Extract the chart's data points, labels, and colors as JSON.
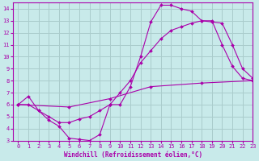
{
  "title": "",
  "xlabel": "Windchill (Refroidissement éolien,°C)",
  "ylabel": "",
  "bg_color": "#c8eaea",
  "line_color": "#aa00aa",
  "grid_color": "#aacccc",
  "xlim": [
    -0.5,
    23
  ],
  "ylim": [
    3,
    14.5
  ],
  "xticks": [
    0,
    1,
    2,
    3,
    4,
    5,
    6,
    7,
    8,
    9,
    10,
    11,
    12,
    13,
    14,
    15,
    16,
    17,
    18,
    19,
    20,
    21,
    22,
    23
  ],
  "yticks": [
    3,
    4,
    5,
    6,
    7,
    8,
    9,
    10,
    11,
    12,
    13,
    14
  ],
  "curve1_x": [
    0,
    1,
    2,
    3,
    4,
    5,
    6,
    7,
    8,
    9,
    10,
    11,
    12,
    13,
    14,
    15,
    16,
    17,
    18,
    19,
    20,
    21,
    22,
    23
  ],
  "curve1_y": [
    6.0,
    6.7,
    5.5,
    4.7,
    4.2,
    3.2,
    3.1,
    3.0,
    3.5,
    6.0,
    6.0,
    7.5,
    10.0,
    12.9,
    14.3,
    14.3,
    14.0,
    13.8,
    13.0,
    13.0,
    11.0,
    9.2,
    8.2,
    8.0
  ],
  "curve2_x": [
    0,
    1,
    2,
    3,
    4,
    5,
    6,
    7,
    8,
    9,
    10,
    11,
    12,
    13,
    14,
    15,
    16,
    17,
    18,
    19,
    20,
    21,
    22,
    23
  ],
  "curve2_y": [
    6.0,
    6.0,
    5.5,
    5.0,
    4.5,
    4.5,
    4.8,
    5.0,
    5.5,
    6.0,
    7.0,
    8.0,
    9.5,
    10.5,
    11.5,
    12.2,
    12.5,
    12.8,
    13.0,
    12.9,
    12.8,
    11.0,
    9.0,
    8.2
  ],
  "curve3_x": [
    0,
    5,
    9,
    13,
    18,
    23
  ],
  "curve3_y": [
    6.0,
    5.8,
    6.5,
    7.5,
    7.8,
    8.0
  ]
}
